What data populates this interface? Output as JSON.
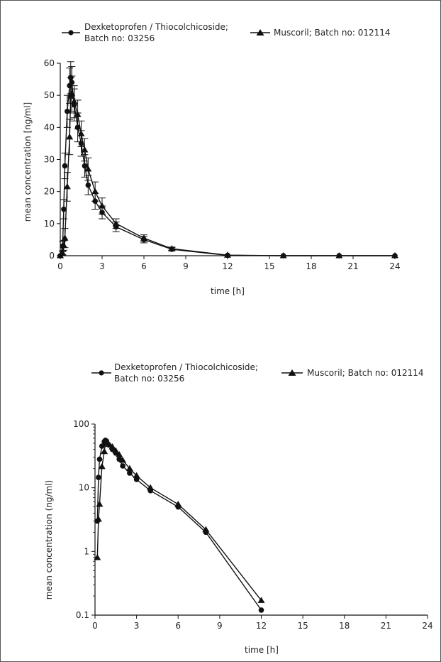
{
  "chart_data": [
    {
      "type": "line",
      "title": "",
      "xlabel": "time [h]",
      "ylabel": "mean concentration [ng/ml]",
      "xlim": [
        0,
        24
      ],
      "ylim": [
        0,
        60
      ],
      "yscale": "linear",
      "x_ticks": [
        "0",
        "3",
        "6",
        "9",
        "12",
        "15",
        "18",
        "21",
        "24"
      ],
      "y_ticks": [
        "0",
        "10",
        "20",
        "30",
        "40",
        "50",
        "60"
      ],
      "legend_position": "top",
      "error_bars": true,
      "series": [
        {
          "name": "Dexketoprofen / Thiocolchicoside; Batch no: 03256",
          "marker": "circle",
          "color": "#111111",
          "x": [
            0,
            0.17,
            0.25,
            0.33,
            0.5,
            0.67,
            0.75,
            0.83,
            1,
            1.25,
            1.5,
            1.75,
            2,
            2.5,
            3,
            4,
            6,
            8,
            12,
            16,
            20,
            24
          ],
          "y": [
            0,
            3,
            14.5,
            28,
            45,
            53,
            55.5,
            54,
            47,
            40,
            35,
            28,
            22,
            17,
            13.5,
            9,
            5,
            2,
            0.12,
            0,
            0,
            0
          ],
          "err": [
            0,
            1.5,
            3,
            4,
            5,
            5.5,
            5,
            5,
            5,
            4.5,
            4,
            3.5,
            3,
            2.5,
            2,
            1.5,
            1,
            0.5,
            0,
            0,
            0,
            0
          ]
        },
        {
          "name": "Muscoril; Batch no: 012114",
          "marker": "triangle",
          "color": "#111111",
          "x": [
            0,
            0.17,
            0.25,
            0.33,
            0.5,
            0.67,
            0.75,
            0.83,
            1,
            1.25,
            1.5,
            1.75,
            2,
            2.5,
            3,
            4,
            6,
            8,
            12,
            16,
            20,
            24
          ],
          "y": [
            0,
            0.8,
            3.2,
            5.5,
            21.5,
            37,
            50,
            50.5,
            48,
            44,
            38,
            33,
            27,
            20,
            15.5,
            10,
            5.5,
            2.2,
            0.17,
            0,
            0,
            0
          ],
          "err": [
            0,
            0.5,
            1.5,
            3,
            4.5,
            5.5,
            5.5,
            5.5,
            5,
            4.5,
            4,
            3.5,
            3.5,
            3,
            2.5,
            1.5,
            1,
            0.5,
            0,
            0,
            0,
            0
          ]
        }
      ]
    },
    {
      "type": "line",
      "title": "",
      "xlabel": "time [h]",
      "ylabel": "mean concentration (ng/ml)",
      "xlim": [
        0,
        24
      ],
      "ylim": [
        0.1,
        100
      ],
      "yscale": "log",
      "x_ticks": [
        "0",
        "3",
        "6",
        "9",
        "12",
        "15",
        "18",
        "21",
        "24"
      ],
      "y_ticks": [
        "0.1",
        "1",
        "10",
        "100"
      ],
      "legend_position": "top",
      "error_bars": false,
      "series": [
        {
          "name": "Dexketoprofen / Thiocolchicoside; Batch no: 03256",
          "marker": "circle",
          "color": "#111111",
          "x": [
            0.17,
            0.25,
            0.33,
            0.5,
            0.67,
            0.75,
            0.83,
            1,
            1.25,
            1.5,
            1.75,
            2,
            2.5,
            3,
            4,
            6,
            8,
            12
          ],
          "y": [
            3,
            14.5,
            28,
            45,
            53,
            55.5,
            54,
            47,
            40,
            35,
            28,
            22,
            17,
            13.5,
            9,
            5,
            2,
            0.12
          ]
        },
        {
          "name": "Muscoril; Batch no: 012114",
          "marker": "triangle",
          "color": "#111111",
          "x": [
            0.17,
            0.25,
            0.33,
            0.5,
            0.67,
            0.75,
            0.83,
            1,
            1.25,
            1.5,
            1.75,
            2,
            2.5,
            3,
            4,
            6,
            8,
            12
          ],
          "y": [
            0.8,
            3.2,
            5.5,
            21.5,
            37,
            50,
            50.5,
            48,
            44,
            38,
            33,
            27,
            20,
            15.5,
            10,
            5.5,
            2.2,
            0.17
          ]
        }
      ]
    }
  ],
  "legend": {
    "series1_line1": "Dexketoprofen / Thiocolchicoside;",
    "series1_line2": "Batch no: 03256",
    "series2": "Muscoril; Batch no: 012114"
  }
}
